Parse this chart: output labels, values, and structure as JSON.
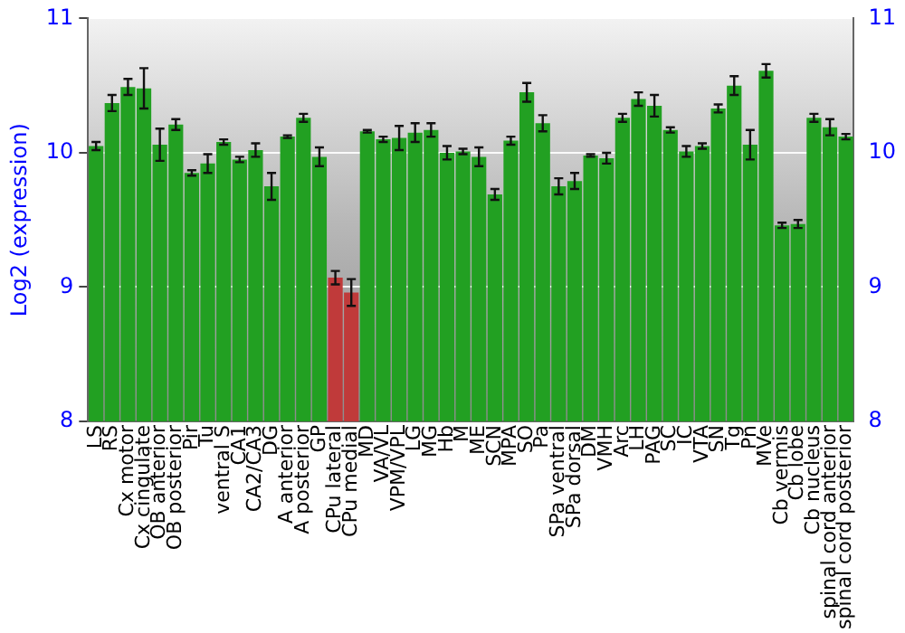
{
  "chart_data": {
    "type": "bar",
    "ylabel": "Log2 (expression)",
    "categories": [
      "LS",
      "RS",
      "Cx motor",
      "Cx cingulate",
      "OB anterior",
      "OB posterior",
      "Pir",
      "Tu",
      "ventral S",
      "CA1",
      "CA2/CA3",
      "DG",
      "A anterior",
      "A posterior",
      "GP",
      "CPu lateral",
      "CPu medial",
      "MD",
      "VA/VL",
      "VPM/VPL",
      "LG",
      "MG",
      "Hb",
      "M",
      "ME",
      "SCN",
      "MPA",
      "SO",
      "Pa",
      "SPa ventral",
      "SPa dorsal",
      "DM",
      "VMH",
      "Arc",
      "LH",
      "PAG",
      "SC",
      "IC",
      "VTA",
      "SN",
      "Tg",
      "Pn",
      "MVe",
      "Cb vermis",
      "Cb lobe",
      "Cb nucleus",
      "spinal cord anterior",
      "spinal cord posterior"
    ],
    "values": [
      10.05,
      10.37,
      10.49,
      10.48,
      10.06,
      10.21,
      9.85,
      9.92,
      10.08,
      9.95,
      10.02,
      9.75,
      10.12,
      10.26,
      9.97,
      9.07,
      8.96,
      10.16,
      10.1,
      10.11,
      10.15,
      10.17,
      10.0,
      10.01,
      9.97,
      9.69,
      10.09,
      10.45,
      10.22,
      9.75,
      9.79,
      9.98,
      9.96,
      10.26,
      10.4,
      10.35,
      10.17,
      10.01,
      10.05,
      10.33,
      10.5,
      10.06,
      10.61,
      9.46,
      9.47,
      10.26,
      10.19,
      10.12
    ],
    "errors": [
      0.03,
      0.06,
      0.06,
      0.15,
      0.12,
      0.04,
      0.02,
      0.07,
      0.02,
      0.02,
      0.05,
      0.1,
      0.01,
      0.03,
      0.07,
      0.05,
      0.1,
      0.01,
      0.02,
      0.09,
      0.07,
      0.05,
      0.05,
      0.02,
      0.07,
      0.04,
      0.03,
      0.07,
      0.06,
      0.06,
      0.06,
      0.01,
      0.04,
      0.03,
      0.05,
      0.08,
      0.02,
      0.04,
      0.02,
      0.03,
      0.07,
      0.11,
      0.05,
      0.02,
      0.03,
      0.03,
      0.06,
      0.02
    ],
    "colors": [
      "#22a022",
      "#22a022",
      "#22a022",
      "#22a022",
      "#22a022",
      "#22a022",
      "#22a022",
      "#22a022",
      "#22a022",
      "#22a022",
      "#22a022",
      "#22a022",
      "#22a022",
      "#22a022",
      "#22a022",
      "#c03a3a",
      "#c03a3a",
      "#22a022",
      "#22a022",
      "#22a022",
      "#22a022",
      "#22a022",
      "#22a022",
      "#22a022",
      "#22a022",
      "#22a022",
      "#22a022",
      "#22a022",
      "#22a022",
      "#22a022",
      "#22a022",
      "#22a022",
      "#22a022",
      "#22a022",
      "#22a022",
      "#22a022",
      "#22a022",
      "#22a022",
      "#22a022",
      "#22a022",
      "#22a022",
      "#22a022",
      "#22a022",
      "#22a022",
      "#22a022",
      "#22a022",
      "#22a022",
      "#22a022"
    ],
    "ylim": [
      8,
      11
    ],
    "yticks": [
      8,
      9,
      10,
      11
    ],
    "y2lim": [
      8,
      11
    ],
    "y2ticks": [
      8,
      9,
      10,
      11
    ],
    "grid": "y",
    "legend": false
  }
}
